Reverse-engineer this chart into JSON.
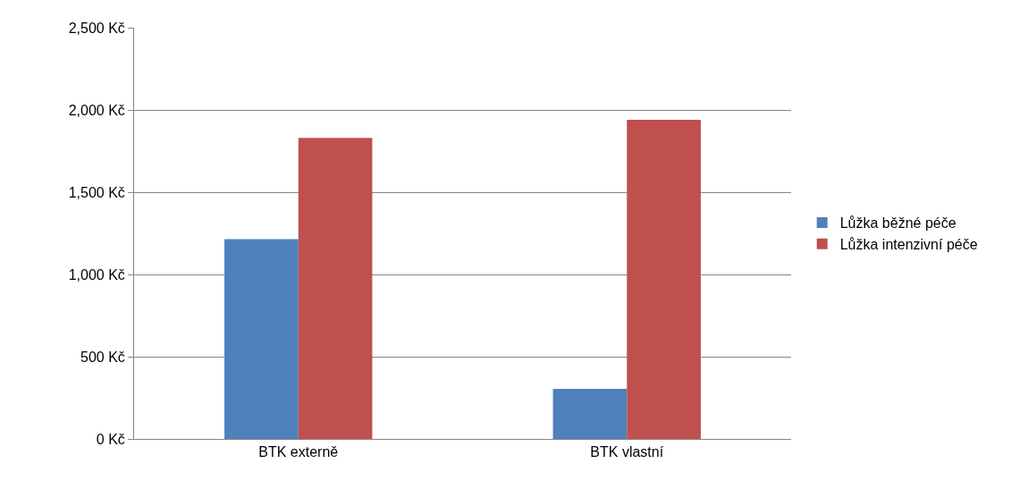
{
  "chart_data": {
    "type": "bar",
    "categories": [
      "BTK externě",
      "BTK vlastní"
    ],
    "series": [
      {
        "name": "Lůžka běžné péče",
        "color": "#4f81bd",
        "values": [
          1215,
          305
        ]
      },
      {
        "name": "Lůžka intenzivní péče",
        "color": "#c0504d",
        "values": [
          1830,
          1940
        ]
      }
    ],
    "ylim": [
      0,
      2500
    ],
    "yticks": [
      {
        "value": 0,
        "label": "0 Kč"
      },
      {
        "value": 500,
        "label": "500 Kč"
      },
      {
        "value": 1000,
        "label": "1,000 Kč"
      },
      {
        "value": 1500,
        "label": "1,500 Kč"
      },
      {
        "value": 2000,
        "label": "2,000 Kč"
      },
      {
        "value": 2500,
        "label": "2,500 Kč"
      }
    ],
    "grid": "y",
    "legend": "right"
  }
}
